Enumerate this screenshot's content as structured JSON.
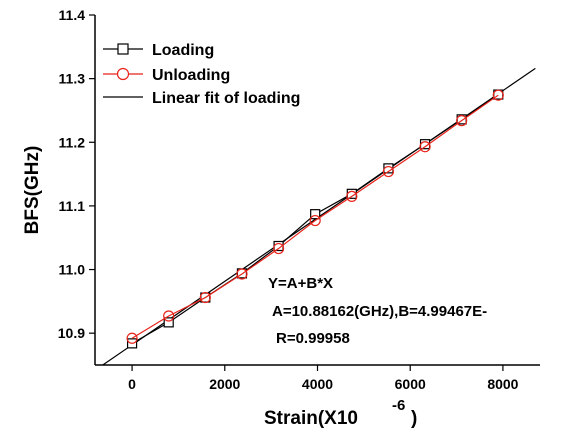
{
  "chart_data": {
    "type": "line",
    "xlabel": "Strain(X10",
    "xlabel_exp": "-6",
    "xlabel_close": " )",
    "ylabel": "BFS(GHz)",
    "xlim": [
      -800,
      8800
    ],
    "ylim": [
      10.85,
      11.4
    ],
    "xticks": [
      0,
      2000,
      4000,
      6000,
      8000
    ],
    "yticks": [
      10.9,
      11.0,
      11.1,
      11.2,
      11.3,
      11.4
    ],
    "ytick_labels": [
      "10.9",
      "11.0",
      "11.1",
      "11.2",
      "11.3",
      "11.4"
    ],
    "series": [
      {
        "name": "Loading",
        "color": "#000000",
        "marker": "square",
        "x": [
          0,
          790,
          1580,
          2370,
          3160,
          3950,
          4740,
          5530,
          6320,
          7110,
          7900
        ],
        "y": [
          10.884,
          10.917,
          10.956,
          10.994,
          11.037,
          11.087,
          11.119,
          11.159,
          11.197,
          11.236,
          11.275
        ]
      },
      {
        "name": "Unloading",
        "color": "#e8231a",
        "marker": "circle",
        "x": [
          0,
          790,
          1580,
          2370,
          3160,
          3950,
          4740,
          5530,
          6320,
          7110,
          7900
        ],
        "y": [
          10.892,
          10.927,
          10.956,
          10.993,
          11.033,
          11.077,
          11.115,
          11.154,
          11.193,
          11.234,
          11.274
        ]
      }
    ],
    "fit": {
      "name": "Linear fit of loading",
      "color": "#000000",
      "intercept": 10.88162,
      "slope": 4.99467e-05,
      "x_range": [
        -800,
        8700
      ]
    },
    "annotation": [
      "Y=A+B*X",
      "A=10.88162(GHz),B=4.99467E-",
      "R=0.99958"
    ],
    "legend_position": "top-left"
  }
}
